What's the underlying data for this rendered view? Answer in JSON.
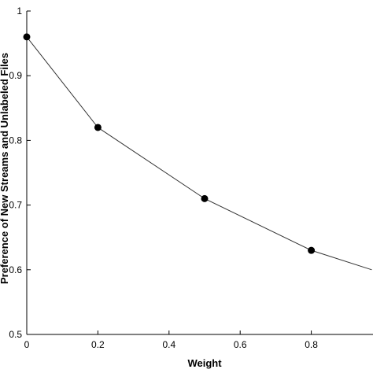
{
  "chart_data": {
    "type": "line",
    "xlabel": "Weight",
    "ylabel": "Preference of New Streams and Unlabeled Files",
    "xlim": [
      0,
      1
    ],
    "ylim": [
      0.5,
      1
    ],
    "x_ticks": [
      "0",
      "0.2",
      "0.4",
      "0.6",
      "0.8"
    ],
    "x_tick_values": [
      0,
      0.2,
      0.4,
      0.6,
      0.8
    ],
    "y_ticks": [
      "0.5",
      "0.6",
      "0.7",
      "0.8",
      "0.9",
      "1"
    ],
    "y_tick_values": [
      0.5,
      0.6,
      0.7,
      0.8,
      0.9,
      1.0
    ],
    "series": [
      {
        "line_x": [
          0,
          0.2,
          0.5,
          0.8,
          0.97
        ],
        "line_y": [
          0.96,
          0.82,
          0.71,
          0.63,
          0.6
        ],
        "marker_x": [
          0,
          0.2,
          0.5,
          0.8
        ],
        "marker_y": [
          0.96,
          0.82,
          0.71,
          0.63
        ]
      }
    ],
    "grid": false,
    "colors": {
      "line": "#333333",
      "marker": "#000000"
    }
  }
}
